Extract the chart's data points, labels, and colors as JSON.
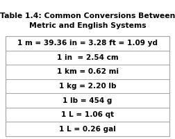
{
  "title_line1": "Table 1.4: Common Conversions Between",
  "title_line2": "Metric and English Systems",
  "rows": [
    "1 m = 39.36 in = 3.28 ft = 1.09 yd",
    "1 in  = 2.54 cm",
    "1 km = 0.62 mi",
    "1 kg = 2.20 lb",
    "1 lb = 454 g",
    "1 L = 1.06 qt",
    "1 L = 0.26 gal"
  ],
  "bg_color": "#ffffff",
  "title_color": "#000000",
  "row_text_color": "#000000",
  "border_color": "#aaaaaa",
  "title_fontsize": 7.8,
  "row_fontsize": 7.6
}
